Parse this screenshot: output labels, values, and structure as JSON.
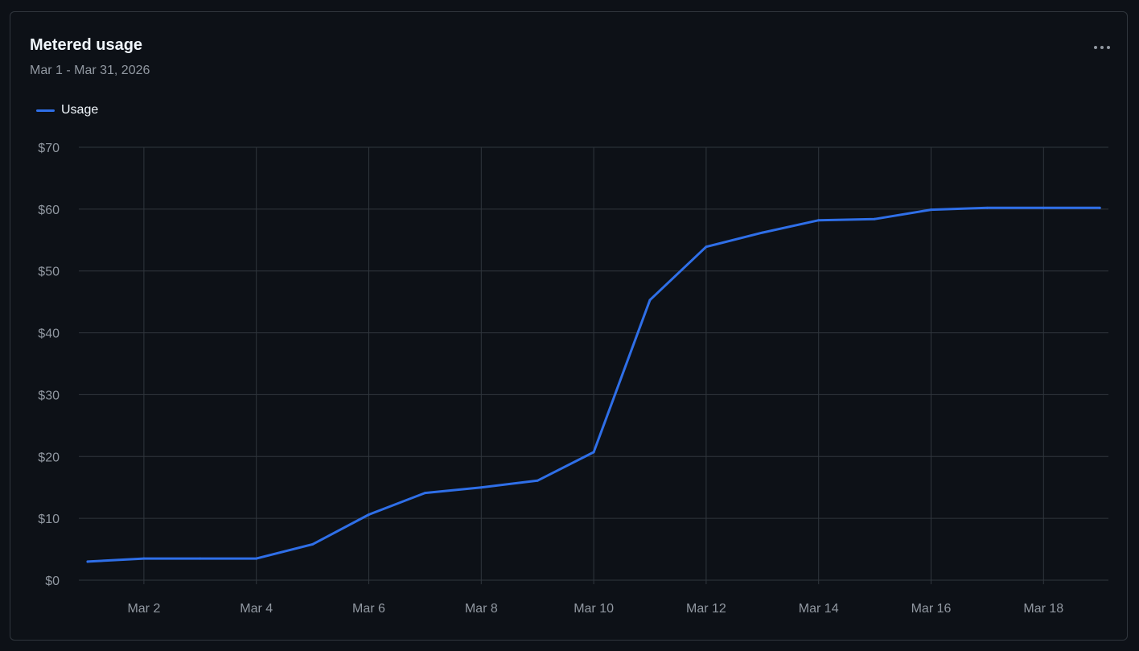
{
  "card": {
    "title": "Metered usage",
    "date_range": "Mar 1 - Mar 31, 2026",
    "more_icon": "kebab-horizontal-icon"
  },
  "colors": {
    "background": "#0d1117",
    "border": "#30363d",
    "grid": "#30363d",
    "line": "#2f6fe8",
    "text_primary": "#f0f6fc",
    "text_muted": "#9198a1"
  },
  "chart_data": {
    "type": "line",
    "title": "Metered usage",
    "subtitle": "Mar 1 - Mar 31, 2026",
    "xlabel": "",
    "ylabel": "",
    "x_ticks": [
      "Mar 2",
      "Mar 4",
      "Mar 6",
      "Mar 8",
      "Mar 10",
      "Mar 12",
      "Mar 14",
      "Mar 16",
      "Mar 18"
    ],
    "y_ticks": [
      "$0",
      "$10",
      "$20",
      "$30",
      "$40",
      "$50",
      "$60",
      "$70"
    ],
    "ylim": [
      0,
      70
    ],
    "xlim": [
      "Mar 1",
      "Mar 19"
    ],
    "grid": true,
    "legend": "top-left",
    "series": [
      {
        "name": "Usage",
        "color": "#2f6fe8",
        "x": [
          "Mar 1",
          "Mar 2",
          "Mar 3",
          "Mar 4",
          "Mar 5",
          "Mar 6",
          "Mar 7",
          "Mar 8",
          "Mar 9",
          "Mar 10",
          "Mar 11",
          "Mar 12",
          "Mar 13",
          "Mar 14",
          "Mar 15",
          "Mar 16",
          "Mar 17",
          "Mar 18",
          "Mar 19"
        ],
        "values": [
          3.0,
          3.5,
          3.5,
          3.5,
          5.8,
          10.6,
          14.1,
          15.0,
          16.1,
          20.7,
          45.3,
          53.9,
          56.2,
          58.2,
          58.4,
          59.9,
          60.2,
          60.2,
          60.2
        ]
      }
    ]
  }
}
